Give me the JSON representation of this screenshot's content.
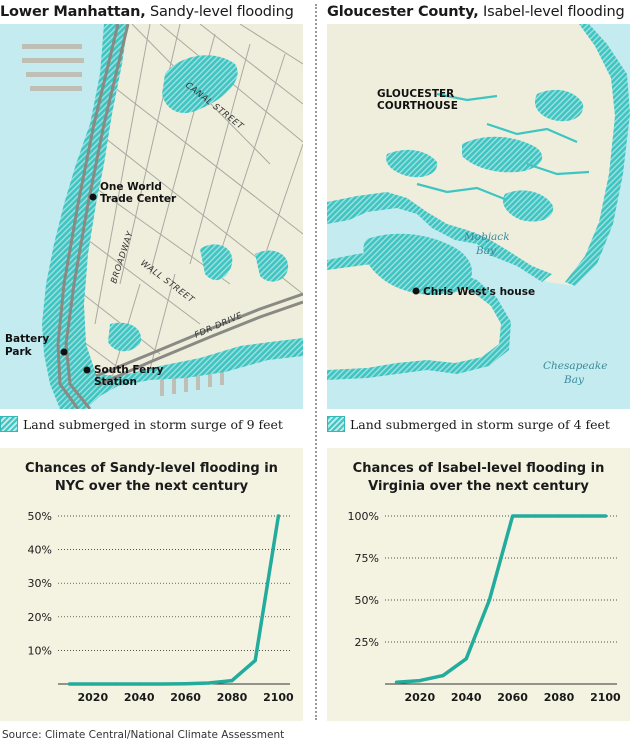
{
  "left": {
    "title_place": "Lower Manhattan,",
    "title_desc": " Sandy-level flooding",
    "labels": {
      "one_wtc_line1": "One World",
      "one_wtc_line2": "Trade Center",
      "battery_line1": "Battery",
      "battery_line2": "Park",
      "south_ferry_line1": "South Ferry",
      "south_ferry_line2": "Station",
      "canal": "CANAL STREET",
      "broadway": "BROADWAY",
      "wall": "WALL STREET",
      "fdr": "FDR DRIVE"
    },
    "legend": "Land submerged in storm surge of 9 feet"
  },
  "right": {
    "title_place": "Gloucester County,",
    "title_desc": " Isabel-level flooding",
    "labels": {
      "courthouse_line1": "GLOUCESTER",
      "courthouse_line2": "COURTHOUSE",
      "mobjack_line1": "Mobjack",
      "mobjack_line2": "Bay",
      "chesapeake_line1": "Chesapeake",
      "chesapeake_line2": "Bay",
      "chris": "Chris West's house"
    },
    "legend": "Land submerged in storm surge of 4 feet"
  },
  "colors": {
    "flood": "#3ec5c2",
    "water": "#c4ebf0",
    "land": "#efeedd",
    "chart_bg": "#f4f3e2",
    "line": "#23ab9c"
  },
  "chart_data": [
    {
      "type": "line",
      "title_line1": "Chances of Sandy-level flooding in",
      "title_line2": "NYC over the next century",
      "x": [
        2010,
        2020,
        2030,
        2040,
        2050,
        2060,
        2070,
        2080,
        2090,
        2100
      ],
      "series": [
        {
          "values": [
            0,
            0,
            0,
            0,
            0,
            0.1,
            0.3,
            1,
            7,
            50
          ]
        }
      ],
      "ylim": [
        0,
        50
      ],
      "y_ticks": [
        10,
        20,
        30,
        40,
        50
      ],
      "y_tick_labels": [
        "10%",
        "20%",
        "30%",
        "40%",
        "50%"
      ],
      "x_ticks": [
        2020,
        2040,
        2060,
        2080,
        2100
      ],
      "x_tick_labels": [
        "2020",
        "2040",
        "2060",
        "2080",
        "2100"
      ],
      "grid": true
    },
    {
      "type": "line",
      "title_line1": "Chances of Isabel-level flooding in",
      "title_line2": "Virginia over the next century",
      "x": [
        2010,
        2020,
        2030,
        2040,
        2050,
        2060,
        2070,
        2080,
        2090,
        2100
      ],
      "series": [
        {
          "values": [
            1,
            2,
            5,
            15,
            50,
            100,
            100,
            100,
            100,
            100
          ]
        }
      ],
      "ylim": [
        0,
        100
      ],
      "y_ticks": [
        25,
        50,
        75,
        100
      ],
      "y_tick_labels": [
        "25%",
        "50%",
        "75%",
        "100%"
      ],
      "x_ticks": [
        2020,
        2040,
        2060,
        2080,
        2100
      ],
      "x_tick_labels": [
        "2020",
        "2040",
        "2060",
        "2080",
        "2100"
      ],
      "grid": true
    }
  ],
  "source": "Source: Climate Central/National Climate Assessment"
}
